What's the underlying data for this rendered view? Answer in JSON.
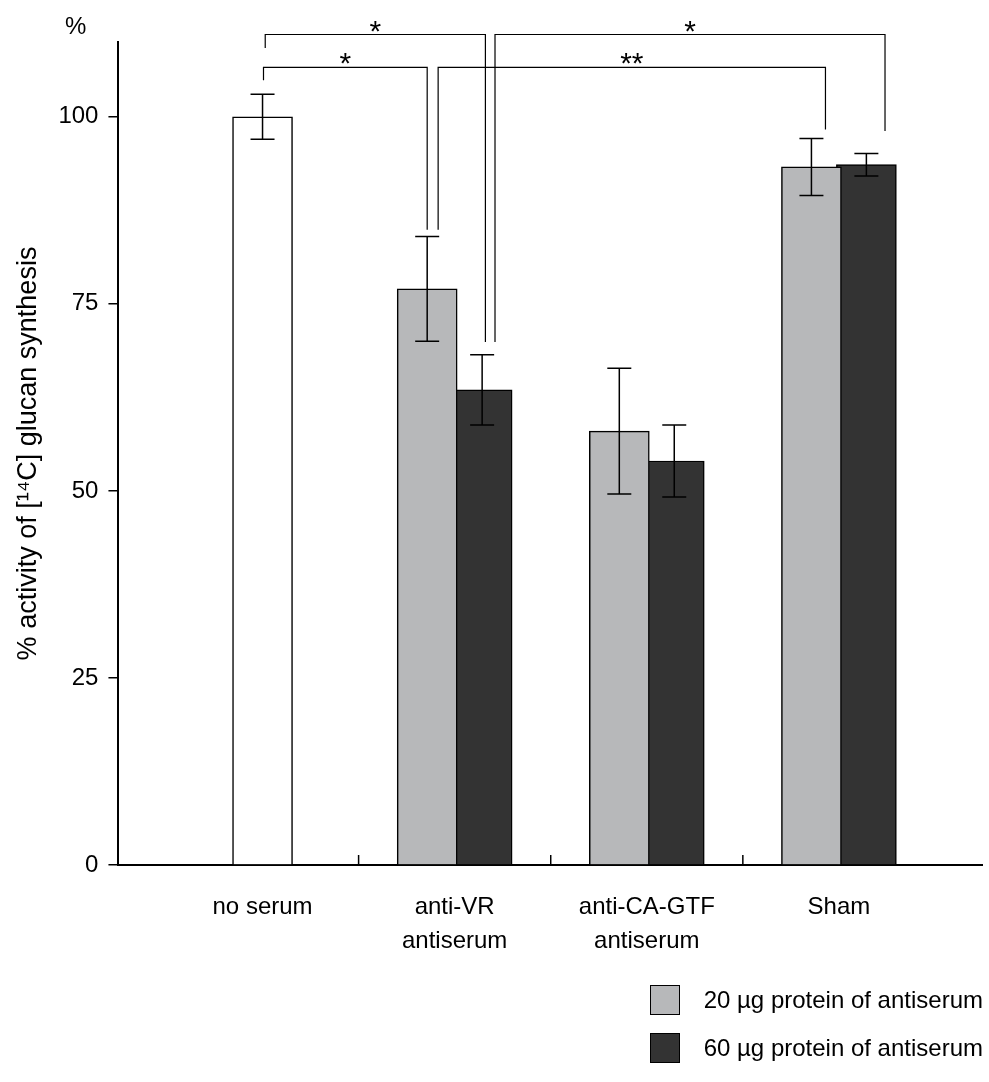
{
  "chart_data": {
    "type": "bar",
    "ylabel": "% activity of [¹⁴C] glucan synthesis",
    "categories": [
      "no serum",
      "anti-VR antiserum",
      "anti-CA-GTF antiserum",
      "Sham"
    ],
    "series": [
      {
        "color": "#ffffff",
        "values": [
          100,
          null,
          null,
          null
        ],
        "errors": [
          3,
          null,
          null,
          null
        ]
      },
      {
        "name": "20 µg protein of antiserum",
        "color": "#b7b8ba",
        "values": [
          null,
          77,
          58,
          93.3
        ],
        "errors": [
          null,
          7,
          8.4,
          3.8
        ]
      },
      {
        "name": "60 µg protein of antiserum",
        "color": "#333333",
        "values": [
          null,
          63.5,
          54,
          93.6
        ],
        "errors": [
          null,
          4.7,
          4.8,
          1.5
        ]
      }
    ],
    "ylim": [
      0,
      110
    ],
    "yticks": [
      0,
      25,
      50,
      75,
      100
    ],
    "grid": false,
    "legend": "bottom right",
    "annotations": [
      "%",
      "*",
      "*",
      "**",
      "*"
    ]
  }
}
